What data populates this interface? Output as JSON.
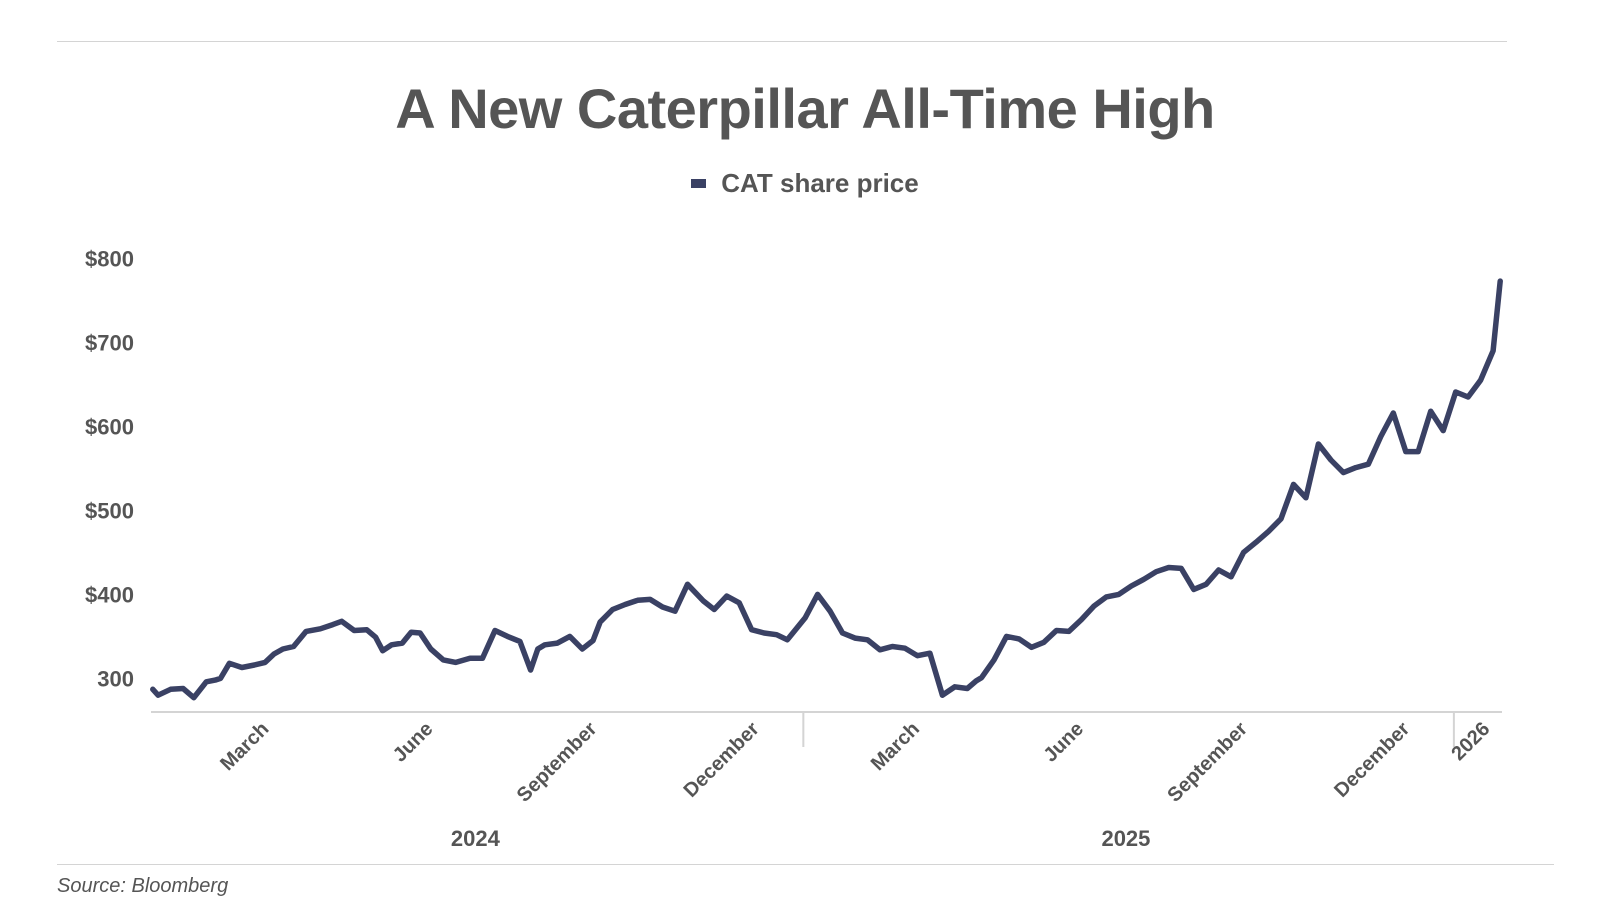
{
  "source": "Source: Bloomberg",
  "colors": {
    "series": "#3a4164",
    "text": "#555555",
    "axis": "#d4d4d4"
  },
  "chart_data": {
    "type": "line",
    "title": "A New Caterpillar All-Time High",
    "legend_position": "top-center",
    "grid": false,
    "ylim": [
      260,
      810
    ],
    "y_ticks": [
      {
        "value": 300,
        "label": "300"
      },
      {
        "value": 400,
        "label": "$400"
      },
      {
        "value": 500,
        "label": "$500"
      },
      {
        "value": 600,
        "label": "$600"
      },
      {
        "value": 700,
        "label": "$700"
      },
      {
        "value": 800,
        "label": "$800"
      }
    ],
    "x_ticks": [
      {
        "date": "2024-03-01",
        "label": "March"
      },
      {
        "date": "2024-06-01",
        "label": "June"
      },
      {
        "date": "2024-09-01",
        "label": "September"
      },
      {
        "date": "2024-12-01",
        "label": "December"
      },
      {
        "date": "2025-03-01",
        "label": "March"
      },
      {
        "date": "2025-06-01",
        "label": "June"
      },
      {
        "date": "2025-09-01",
        "label": "September"
      },
      {
        "date": "2025-12-01",
        "label": "December"
      },
      {
        "date": "2026-01-15",
        "label": "2026"
      }
    ],
    "year_labels": [
      {
        "date": "2024-07-01",
        "label": "2024"
      },
      {
        "date": "2025-07-01",
        "label": "2025"
      }
    ],
    "year_dividers": [
      "2025-01-01",
      "2026-01-01"
    ],
    "xlim": [
      "2024-01-01",
      "2026-01-28"
    ],
    "series": [
      {
        "name": "CAT share price",
        "x": [
          "2024-01-02",
          "2024-01-05",
          "2024-01-12",
          "2024-01-19",
          "2024-01-25",
          "2024-02-01",
          "2024-02-06",
          "2024-02-09",
          "2024-02-14",
          "2024-02-21",
          "2024-02-28",
          "2024-03-05",
          "2024-03-10",
          "2024-03-15",
          "2024-03-21",
          "2024-03-28",
          "2024-04-05",
          "2024-04-12",
          "2024-04-17",
          "2024-04-24",
          "2024-05-01",
          "2024-05-06",
          "2024-05-10",
          "2024-05-15",
          "2024-05-21",
          "2024-05-26",
          "2024-05-31",
          "2024-06-06",
          "2024-06-13",
          "2024-06-20",
          "2024-06-28",
          "2024-07-05",
          "2024-07-12",
          "2024-07-19",
          "2024-07-26",
          "2024-08-01",
          "2024-08-05",
          "2024-08-09",
          "2024-08-16",
          "2024-08-23",
          "2024-08-30",
          "2024-09-05",
          "2024-09-09",
          "2024-09-16",
          "2024-09-23",
          "2024-09-30",
          "2024-10-07",
          "2024-10-14",
          "2024-10-21",
          "2024-10-28",
          "2024-11-06",
          "2024-11-12",
          "2024-11-19",
          "2024-11-26",
          "2024-12-03",
          "2024-12-10",
          "2024-12-17",
          "2024-12-23",
          "2025-01-02",
          "2025-01-09",
          "2025-01-16",
          "2025-01-23",
          "2025-01-30",
          "2025-02-06",
          "2025-02-13",
          "2025-02-20",
          "2025-02-27",
          "2025-03-06",
          "2025-03-13",
          "2025-03-20",
          "2025-03-27",
          "2025-04-03",
          "2025-04-08",
          "2025-04-11",
          "2025-04-18",
          "2025-04-25",
          "2025-05-02",
          "2025-05-09",
          "2025-05-16",
          "2025-05-23",
          "2025-05-30",
          "2025-06-06",
          "2025-06-13",
          "2025-06-20",
          "2025-06-27",
          "2025-07-04",
          "2025-07-11",
          "2025-07-18",
          "2025-07-25",
          "2025-08-01",
          "2025-08-08",
          "2025-08-15",
          "2025-08-22",
          "2025-08-29",
          "2025-09-05",
          "2025-09-12",
          "2025-09-19",
          "2025-09-26",
          "2025-10-03",
          "2025-10-10",
          "2025-10-17",
          "2025-10-24",
          "2025-10-31",
          "2025-11-07",
          "2025-11-14",
          "2025-11-21",
          "2025-11-28",
          "2025-12-05",
          "2025-12-12",
          "2025-12-19",
          "2025-12-26",
          "2026-01-02",
          "2026-01-09",
          "2026-01-16",
          "2026-01-23",
          "2026-01-27"
        ],
        "y": [
          287,
          280,
          287,
          288,
          277,
          296,
          298,
          300,
          318,
          313,
          316,
          319,
          329,
          335,
          338,
          356,
          359,
          364,
          368,
          357,
          358,
          349,
          333,
          340,
          342,
          355,
          354,
          335,
          322,
          319,
          324,
          324,
          357,
          350,
          344,
          310,
          335,
          340,
          342,
          350,
          335,
          345,
          367,
          382,
          388,
          393,
          394,
          385,
          380,
          412,
          392,
          382,
          398,
          390,
          358,
          354,
          352,
          346,
          372,
          400,
          380,
          354,
          348,
          346,
          334,
          338,
          336,
          327,
          330,
          280,
          290,
          288,
          297,
          301,
          322,
          350,
          347,
          337,
          343,
          357,
          356,
          370,
          386,
          397,
          400,
          410,
          418,
          427,
          432,
          431,
          406,
          412,
          429,
          421,
          450,
          462,
          475,
          490,
          531,
          515,
          579,
          560,
          545,
          551,
          555,
          588,
          616,
          570,
          570,
          618,
          595,
          641,
          635,
          655,
          690,
          773
        ]
      }
    ]
  }
}
